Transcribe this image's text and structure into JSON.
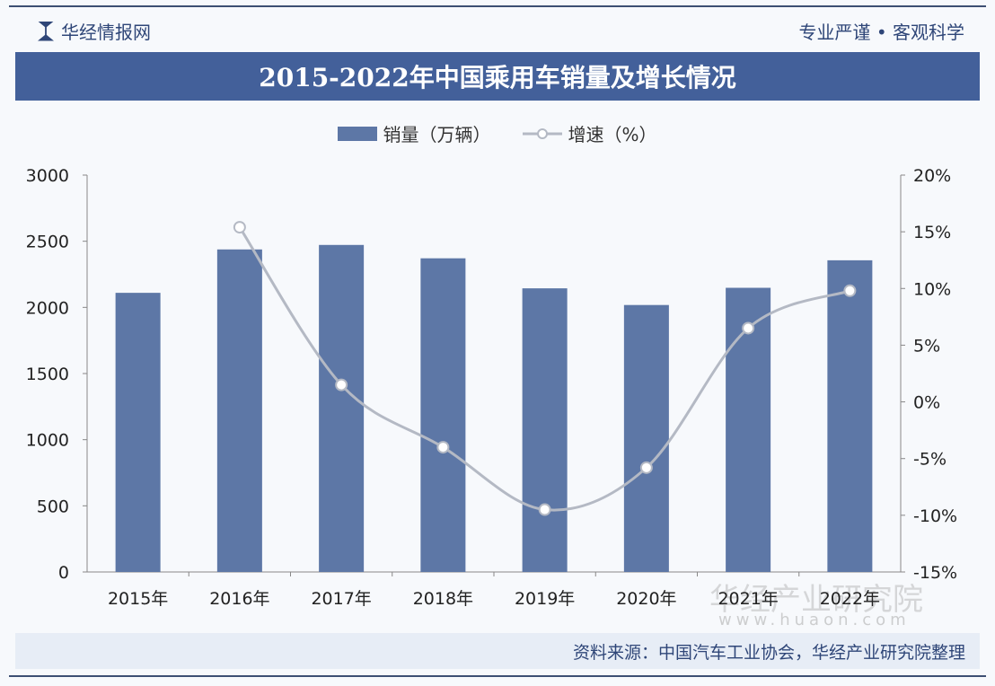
{
  "header": {
    "brand": "华经情报网",
    "slogan": "专业严谨 • 客观科学"
  },
  "footer": {
    "source": "资料来源：中国汽车工业协会，华经产业研究院整理"
  },
  "watermark": {
    "name": "华经产业研究院",
    "url": "www.huaon.com"
  },
  "colors": {
    "bar": "#5d77a6",
    "line": "#b4b9c4",
    "banner": "#43609a"
  },
  "chart_data": {
    "type": "bar+line",
    "title": "2015-2022年中国乘用车销量及增长情况",
    "categories": [
      "2015年",
      "2016年",
      "2017年",
      "2018年",
      "2019年",
      "2020年",
      "2021年",
      "2022年"
    ],
    "series": [
      {
        "name": "销量（万辆）",
        "type": "bar",
        "axis": "left",
        "values": [
          2110,
          2438,
          2472,
          2371,
          2144,
          2018,
          2148,
          2356
        ]
      },
      {
        "name": "增速（%）",
        "type": "line",
        "axis": "right",
        "values": [
          null,
          15.4,
          1.5,
          -4.0,
          -9.5,
          -5.8,
          6.5,
          9.8
        ]
      }
    ],
    "left_axis": {
      "ylim": [
        0,
        3000
      ],
      "ticks": [
        "0",
        "500",
        "1000",
        "1500",
        "2000",
        "2500",
        "3000"
      ]
    },
    "right_axis": {
      "ylim": [
        -15,
        20
      ],
      "ticks": [
        "-15%",
        "-10%",
        "-5%",
        "0%",
        "5%",
        "10%",
        "15%",
        "20%"
      ]
    },
    "grid": false,
    "legend": "top-center"
  }
}
